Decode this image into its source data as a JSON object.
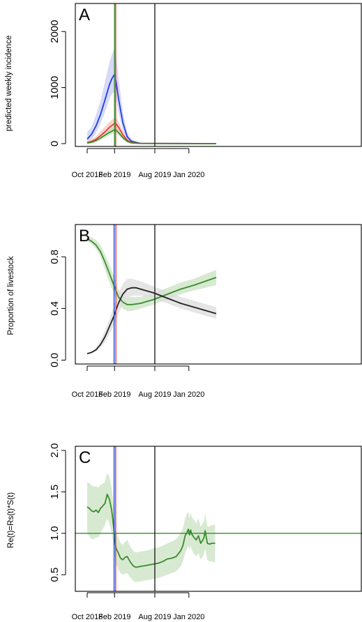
{
  "x_axis": {
    "ticks": [
      {
        "label": "Oct 2018",
        "days": 0
      },
      {
        "label": "Feb 2019",
        "days": 123
      },
      {
        "label": "Aug 2019",
        "days": 304
      },
      {
        "label": "Jan 2020",
        "days": 457
      }
    ],
    "range_days": [
      0,
      580
    ],
    "reference_start_label": "Oct 2018"
  },
  "colors": {
    "blue": "#1f3fe0",
    "red": "#e83a2f",
    "green": "#3a8a2e",
    "black": "#222222",
    "blue_band": "#c9ccf7",
    "red_band": "#f7c6be",
    "green_band": "#c9e3c2",
    "grey_band": "#dcdcdc"
  },
  "chart_data": [
    {
      "panel": "A",
      "type": "line",
      "ylabel": "predicted weekly incidence",
      "ylim": [
        -50,
        2500
      ],
      "yticks": [
        0,
        1000,
        2000
      ],
      "vlines": [
        {
          "days": 123,
          "color": "green"
        },
        {
          "days": 128,
          "color": "red"
        },
        {
          "days": 304,
          "color": "black"
        }
      ],
      "series": [
        {
          "color": "blue",
          "x": [
            0,
            20,
            40,
            60,
            80,
            100,
            110,
            120,
            123,
            130,
            140,
            160,
            180,
            200,
            240,
            580
          ],
          "y": [
            80,
            170,
            320,
            520,
            780,
            1050,
            1150,
            1220,
            1230,
            1100,
            820,
            380,
            120,
            40,
            5,
            0
          ],
          "lower": [
            30,
            80,
            190,
            360,
            560,
            800,
            880,
            920,
            920,
            820,
            570,
            250,
            70,
            20,
            0,
            0
          ],
          "upper": [
            200,
            300,
            520,
            760,
            1100,
            1450,
            1580,
            1680,
            1700,
            1560,
            1200,
            580,
            200,
            70,
            10,
            0
          ]
        },
        {
          "color": "red",
          "x": [
            0,
            20,
            40,
            60,
            80,
            100,
            120,
            125,
            130,
            140,
            160,
            180,
            200,
            240,
            580
          ],
          "y": [
            20,
            40,
            80,
            140,
            210,
            290,
            350,
            365,
            350,
            300,
            160,
            60,
            20,
            5,
            0
          ],
          "lower": [
            5,
            15,
            40,
            80,
            140,
            200,
            250,
            260,
            250,
            200,
            100,
            35,
            10,
            2,
            0
          ],
          "upper": [
            50,
            80,
            130,
            220,
            300,
            390,
            450,
            470,
            455,
            400,
            240,
            100,
            40,
            10,
            0
          ]
        },
        {
          "color": "green",
          "x": [
            0,
            20,
            40,
            60,
            80,
            100,
            120,
            125,
            130,
            140,
            160,
            180,
            200,
            240,
            580
          ],
          "y": [
            10,
            25,
            55,
            100,
            150,
            200,
            240,
            248,
            240,
            200,
            110,
            40,
            12,
            3,
            0
          ],
          "lower": [
            2,
            10,
            30,
            65,
            105,
            145,
            180,
            185,
            180,
            150,
            75,
            25,
            6,
            1,
            0
          ],
          "upper": [
            25,
            45,
            90,
            140,
            200,
            260,
            300,
            310,
            300,
            260,
            150,
            60,
            20,
            6,
            0
          ]
        }
      ]
    },
    {
      "panel": "B",
      "type": "line",
      "ylabel": "Proportion of livestock",
      "ylim": [
        -0.03,
        1.05
      ],
      "yticks": [
        0.0,
        0.4,
        0.8
      ],
      "vlines": [
        {
          "days": 121,
          "color": "blue"
        },
        {
          "days": 129,
          "color": "red"
        },
        {
          "days": 304,
          "color": "black"
        }
      ],
      "series": [
        {
          "color": "green",
          "x": [
            0,
            20,
            40,
            60,
            80,
            100,
            120,
            140,
            160,
            180,
            200,
            240,
            300,
            360,
            420,
            480,
            580
          ],
          "y": [
            0.94,
            0.92,
            0.89,
            0.84,
            0.76,
            0.67,
            0.58,
            0.49,
            0.45,
            0.43,
            0.43,
            0.44,
            0.47,
            0.51,
            0.55,
            0.58,
            0.64
          ],
          "lower": [
            0.92,
            0.9,
            0.86,
            0.8,
            0.7,
            0.6,
            0.52,
            0.44,
            0.4,
            0.38,
            0.38,
            0.4,
            0.43,
            0.47,
            0.51,
            0.54,
            0.58
          ],
          "upper": [
            0.96,
            0.95,
            0.93,
            0.89,
            0.82,
            0.74,
            0.65,
            0.55,
            0.51,
            0.49,
            0.49,
            0.49,
            0.52,
            0.56,
            0.6,
            0.63,
            0.7
          ]
        },
        {
          "color": "black",
          "x": [
            0,
            20,
            40,
            60,
            80,
            100,
            120,
            140,
            160,
            180,
            200,
            220,
            240,
            300,
            360,
            420,
            480,
            580
          ],
          "y": [
            0.05,
            0.06,
            0.08,
            0.12,
            0.18,
            0.26,
            0.34,
            0.44,
            0.51,
            0.55,
            0.56,
            0.56,
            0.55,
            0.52,
            0.48,
            0.44,
            0.41,
            0.36
          ],
          "lower": [
            0.05,
            0.055,
            0.07,
            0.1,
            0.14,
            0.2,
            0.27,
            0.36,
            0.43,
            0.48,
            0.5,
            0.5,
            0.5,
            0.48,
            0.44,
            0.4,
            0.37,
            0.32
          ],
          "upper": [
            0.05,
            0.065,
            0.1,
            0.15,
            0.23,
            0.32,
            0.42,
            0.52,
            0.59,
            0.63,
            0.63,
            0.62,
            0.61,
            0.57,
            0.53,
            0.49,
            0.46,
            0.41
          ]
        }
      ]
    },
    {
      "panel": "C",
      "type": "line",
      "ylabel": "Re(t)=Rs(t)*S(t)",
      "ylim": [
        0.3,
        2.05
      ],
      "yticks": [
        0.5,
        1.0,
        1.5,
        2.0
      ],
      "hlines": [
        {
          "y": 1.0,
          "color": "green"
        }
      ],
      "vlines": [
        {
          "days": 121,
          "color": "blue"
        },
        {
          "days": 128,
          "color": "red"
        },
        {
          "days": 304,
          "color": "black"
        }
      ],
      "series": [
        {
          "color": "green",
          "x": [
            0,
            10,
            20,
            30,
            40,
            50,
            60,
            70,
            80,
            90,
            100,
            110,
            120,
            125,
            130,
            140,
            150,
            160,
            170,
            180,
            190,
            200,
            210,
            220,
            240,
            260,
            280,
            300,
            320,
            340,
            360,
            380,
            400,
            420,
            430,
            440,
            450,
            455,
            460,
            465,
            470,
            480,
            490,
            500,
            510,
            520,
            525,
            530,
            540,
            550,
            560,
            575
          ],
          "y": [
            1.32,
            1.3,
            1.27,
            1.26,
            1.28,
            1.25,
            1.3,
            1.33,
            1.36,
            1.47,
            1.41,
            1.28,
            1.05,
            0.9,
            0.82,
            0.76,
            0.7,
            0.68,
            0.71,
            0.72,
            0.67,
            0.63,
            0.6,
            0.59,
            0.6,
            0.61,
            0.62,
            0.63,
            0.64,
            0.66,
            0.69,
            0.7,
            0.72,
            0.79,
            0.85,
            0.97,
            1.02,
            1.05,
            0.98,
            1.04,
            0.99,
            0.95,
            0.92,
            0.97,
            0.88,
            0.92,
            0.95,
            1.03,
            0.88,
            0.87,
            0.88,
            0.88
          ],
          "lower": [
            1.0,
            0.96,
            0.93,
            0.93,
            0.95,
            0.95,
            1.0,
            1.05,
            1.1,
            1.18,
            1.12,
            1.0,
            0.82,
            0.7,
            0.62,
            0.56,
            0.52,
            0.5,
            0.51,
            0.52,
            0.48,
            0.45,
            0.42,
            0.41,
            0.42,
            0.43,
            0.44,
            0.45,
            0.46,
            0.48,
            0.5,
            0.52,
            0.54,
            0.6,
            0.66,
            0.76,
            0.82,
            0.85,
            0.8,
            0.85,
            0.8,
            0.75,
            0.72,
            0.76,
            0.68,
            0.72,
            0.75,
            0.82,
            0.68,
            0.66,
            0.66,
            0.65
          ],
          "upper": [
            1.62,
            1.6,
            1.58,
            1.56,
            1.57,
            1.55,
            1.58,
            1.6,
            1.62,
            1.73,
            1.68,
            1.55,
            1.3,
            1.12,
            1.02,
            0.95,
            0.89,
            0.86,
            0.9,
            0.92,
            0.86,
            0.82,
            0.78,
            0.77,
            0.78,
            0.79,
            0.8,
            0.82,
            0.83,
            0.85,
            0.88,
            0.9,
            0.93,
            1.0,
            1.06,
            1.18,
            1.24,
            1.26,
            1.18,
            1.25,
            1.2,
            1.16,
            1.12,
            1.18,
            1.08,
            1.12,
            1.15,
            1.24,
            1.08,
            1.08,
            1.1,
            1.1
          ]
        }
      ]
    }
  ]
}
